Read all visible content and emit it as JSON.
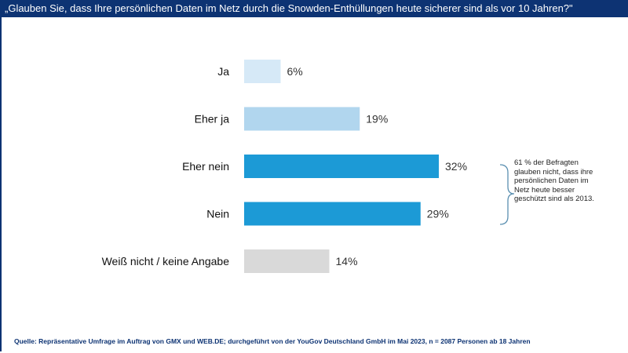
{
  "title": "„Glauben Sie, dass Ihre persönlichen Daten im Netz durch die Snowden-Enthüllungen heute sicherer sind als vor 10 Jahren?\"",
  "chart_data": {
    "type": "bar",
    "orientation": "horizontal",
    "categories": [
      "Ja",
      "Eher ja",
      "Eher nein",
      "Nein",
      "Weiß nicht / keine Angabe"
    ],
    "values": [
      6,
      19,
      32,
      29,
      14
    ],
    "value_labels": [
      "6%",
      "19%",
      "32%",
      "29%",
      "14%"
    ],
    "unit": "%",
    "colors": [
      "#d6e9f7",
      "#b1d6ee",
      "#1c9ad6",
      "#1c9ad6",
      "#d9d9d9"
    ],
    "grid": false,
    "axes_visible": false,
    "annotation": "61 % der Befragten glauben nicht, dass ihre persönlichen Daten im Netz heute besser geschützt sind als 2013.",
    "bracket_color": "#5a8fb0"
  },
  "source": "Quelle: Repräsentative Umfrage im Auftrag von GMX und WEB.DE; durchgeführt von der YouGov Deutschland GmbH im Mai 2023, n = 2087 Personen ab 18 Jahren",
  "colors": {
    "header": "#0d3373",
    "source_text": "#0d3373"
  }
}
